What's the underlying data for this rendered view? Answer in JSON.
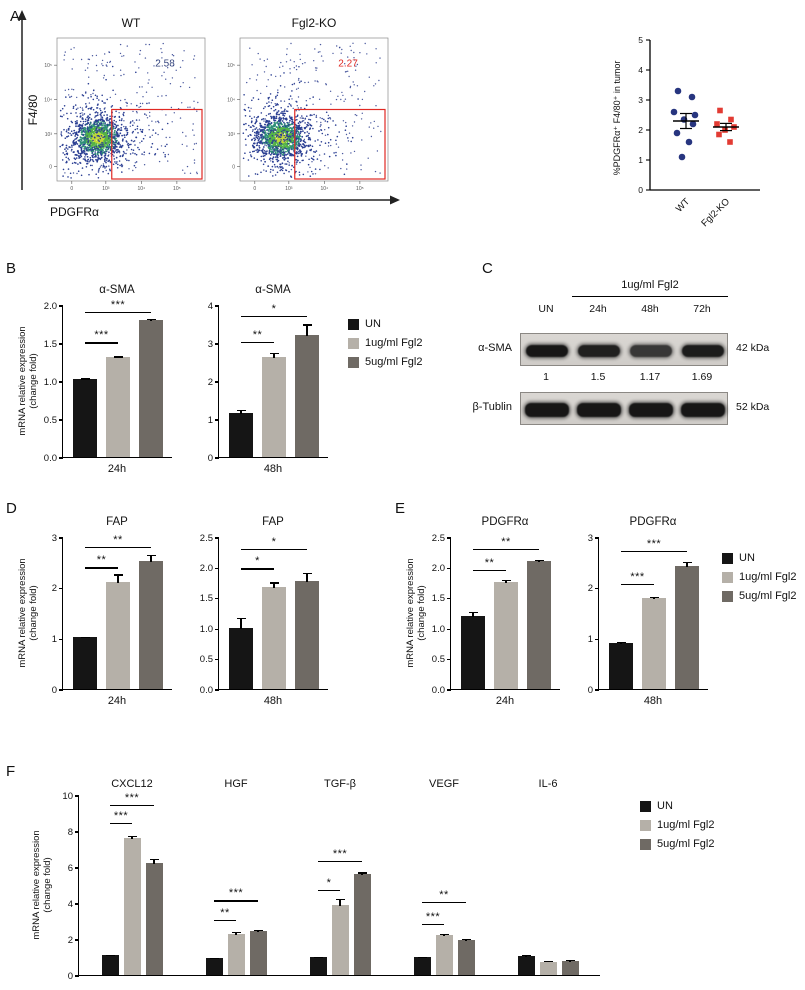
{
  "figure": {
    "panel_labels": {
      "A": "A",
      "B": "B",
      "C": "C",
      "D": "D",
      "E": "E",
      "F": "F"
    }
  },
  "legend": {
    "items": [
      {
        "label": "UN",
        "color": "#151515"
      },
      {
        "label": "1ug/ml Fgl2",
        "color": "#b5b0a8"
      },
      {
        "label": "5ug/ml Fgl2",
        "color": "#6f6a64"
      }
    ]
  },
  "panelA": {
    "flow": {
      "xlabel": "PDGFRα",
      "ylabel": "F4/80",
      "axis_ticks": [
        "0",
        "10³",
        "10⁴",
        "10⁵"
      ],
      "gate_color": "#e02923",
      "plots": [
        {
          "title": "WT",
          "gate_percent": "2.58",
          "value_color": "#37477f"
        },
        {
          "title": "Fgl2-KO",
          "gate_percent": "2.27",
          "value_color": "#e02923"
        }
      ]
    },
    "scatter": {
      "ylabel": "%PDGFRα⁺ F4/80⁺ in tumor",
      "ylim": [
        0,
        5
      ],
      "yticks": [
        "0",
        "1",
        "2",
        "3",
        "4",
        "5"
      ],
      "groups": [
        {
          "name": "WT",
          "marker": "circle",
          "color": "#27357f",
          "values": [
            3.3,
            3.1,
            2.6,
            2.5,
            2.35,
            2.2,
            1.9,
            1.6,
            1.1
          ],
          "mean": 2.3,
          "sem": 0.25
        },
        {
          "name": "Fgl2-KO",
          "marker": "square",
          "color": "#e23b33",
          "values": [
            2.65,
            2.35,
            2.2,
            2.1,
            2.0,
            1.85,
            1.6
          ],
          "mean": 2.1,
          "sem": 0.12
        }
      ]
    }
  },
  "panelC": {
    "header": "1ug/ml Fgl2",
    "lanes": [
      "UN",
      "24h",
      "48h",
      "72h"
    ],
    "rows": [
      {
        "name": "α-SMA",
        "kda": "42 kDa",
        "quantification": [
          "1",
          "1.5",
          "1.17",
          "1.69"
        ]
      },
      {
        "name": "β-Tublin",
        "kda": "52 kDa",
        "quantification": []
      }
    ]
  },
  "chart_data": [
    {
      "type": "bar",
      "panel": "B",
      "title": "α-SMA",
      "xlabel": "24h",
      "ylabel": "mRNA relative expression",
      "ylabel2": "(change fold)",
      "ylim": [
        0,
        2
      ],
      "yticks": [
        "0.0",
        "0.5",
        "1.0",
        "1.5",
        "2.0"
      ],
      "series": [
        "UN",
        "1ug/ml Fgl2",
        "5ug/ml Fgl2"
      ],
      "values": [
        1.02,
        1.31,
        1.8
      ],
      "errors": [
        0.02,
        0.02,
        0.02
      ],
      "sig": [
        {
          "a": 0,
          "b": 1,
          "label": "***",
          "y": 1.52
        },
        {
          "a": 0,
          "b": 2,
          "label": "***",
          "y": 1.92
        }
      ]
    },
    {
      "type": "bar",
      "panel": "B",
      "title": "α-SMA",
      "xlabel": "48h",
      "ylim": [
        0,
        4
      ],
      "yticks": [
        "0",
        "1",
        "2",
        "3",
        "4"
      ],
      "series": [
        "UN",
        "1ug/ml Fgl2",
        "5ug/ml Fgl2"
      ],
      "values": [
        1.15,
        2.62,
        3.2
      ],
      "errors": [
        0.1,
        0.12,
        0.3
      ],
      "sig": [
        {
          "a": 0,
          "b": 1,
          "label": "**",
          "y": 3.05
        },
        {
          "a": 0,
          "b": 2,
          "label": "*",
          "y": 3.75
        }
      ]
    },
    {
      "type": "bar",
      "panel": "D",
      "title": "FAP",
      "xlabel": "24h",
      "ylabel": "mRNA relative expression",
      "ylabel2": "(change fold)",
      "ylim": [
        0,
        3
      ],
      "yticks": [
        "0",
        "1",
        "2",
        "3"
      ],
      "series": [
        "UN",
        "1ug/ml Fgl2",
        "5ug/ml Fgl2"
      ],
      "values": [
        1.02,
        2.12,
        2.52
      ],
      "errors": [
        0.02,
        0.15,
        0.13
      ],
      "sig": [
        {
          "a": 0,
          "b": 1,
          "label": "**",
          "y": 2.42
        },
        {
          "a": 0,
          "b": 2,
          "label": "**",
          "y": 2.82
        }
      ]
    },
    {
      "type": "bar",
      "panel": "D",
      "title": "FAP",
      "xlabel": "48h",
      "ylim": [
        0,
        2.5
      ],
      "yticks": [
        "0.0",
        "0.5",
        "1.0",
        "1.5",
        "2.0",
        "2.5"
      ],
      "series": [
        "UN",
        "1ug/ml Fgl2",
        "5ug/ml Fgl2"
      ],
      "values": [
        1.0,
        1.68,
        1.78
      ],
      "errors": [
        0.17,
        0.08,
        0.13
      ],
      "sig": [
        {
          "a": 0,
          "b": 1,
          "label": "*",
          "y": 2.0
        },
        {
          "a": 0,
          "b": 2,
          "label": "*",
          "y": 2.32
        }
      ]
    },
    {
      "type": "bar",
      "panel": "E",
      "title": "PDGFRα",
      "xlabel": "24h",
      "ylabel": "mRNA relative expression",
      "ylabel2": "(change fold)",
      "ylim": [
        0,
        2.5
      ],
      "yticks": [
        "0.0",
        "0.5",
        "1.0",
        "1.5",
        "2.0",
        "2.5"
      ],
      "series": [
        "UN",
        "1ug/ml Fgl2",
        "5ug/ml Fgl2"
      ],
      "values": [
        1.2,
        1.76,
        2.1
      ],
      "errors": [
        0.07,
        0.04,
        0.03
      ],
      "sig": [
        {
          "a": 0,
          "b": 1,
          "label": "**",
          "y": 1.98
        },
        {
          "a": 0,
          "b": 2,
          "label": "**",
          "y": 2.32
        }
      ]
    },
    {
      "type": "bar",
      "panel": "E",
      "title": "PDGFRα",
      "xlabel": "48h",
      "ylim": [
        0,
        3
      ],
      "yticks": [
        "0",
        "1",
        "2",
        "3"
      ],
      "series": [
        "UN",
        "1ug/ml Fgl2",
        "5ug/ml Fgl2"
      ],
      "values": [
        0.9,
        1.8,
        2.42
      ],
      "errors": [
        0.03,
        0.03,
        0.1
      ],
      "sig": [
        {
          "a": 0,
          "b": 1,
          "label": "***",
          "y": 2.1
        },
        {
          "a": 0,
          "b": 2,
          "label": "***",
          "y": 2.75
        }
      ]
    },
    {
      "type": "grouped-bar",
      "panel": "F",
      "categories": [
        "CXCL12",
        "HGF",
        "TGF-β",
        "VEGF",
        "IL-6"
      ],
      "ylabel": "mRNA relative expression",
      "ylabel2": "(change fold)",
      "ylim": [
        0,
        10
      ],
      "yticks": [
        "0",
        "2",
        "4",
        "6",
        "8",
        "10"
      ],
      "series": [
        {
          "name": "UN",
          "values": [
            1.1,
            0.95,
            1.0,
            1.0,
            1.05
          ],
          "errors": [
            0.05,
            0.04,
            0.05,
            0.04,
            0.08
          ]
        },
        {
          "name": "1ug/ml Fgl2",
          "values": [
            7.6,
            2.3,
            3.9,
            2.2,
            0.75
          ],
          "errors": [
            0.15,
            0.1,
            0.35,
            0.12,
            0.06
          ]
        },
        {
          "name": "5ug/ml Fgl2",
          "values": [
            6.2,
            2.45,
            5.6,
            1.95,
            0.8
          ],
          "errors": [
            0.25,
            0.1,
            0.12,
            0.1,
            0.07
          ]
        }
      ],
      "sig": [
        {
          "group": 0,
          "a": 0,
          "b": 1,
          "label": "***",
          "y": 8.5
        },
        {
          "group": 0,
          "a": 0,
          "b": 2,
          "label": "***",
          "y": 9.5
        },
        {
          "group": 1,
          "a": 0,
          "b": 1,
          "label": "**",
          "y": 3.1
        },
        {
          "group": 1,
          "a": 0,
          "b": 2,
          "label": "***",
          "y": 4.2
        },
        {
          "group": 2,
          "a": 0,
          "b": 1,
          "label": "*",
          "y": 4.8
        },
        {
          "group": 2,
          "a": 0,
          "b": 2,
          "label": "***",
          "y": 6.4
        },
        {
          "group": 3,
          "a": 0,
          "b": 1,
          "label": "***",
          "y": 2.9
        },
        {
          "group": 3,
          "a": 0,
          "b": 2,
          "label": "**",
          "y": 4.1
        }
      ]
    }
  ]
}
